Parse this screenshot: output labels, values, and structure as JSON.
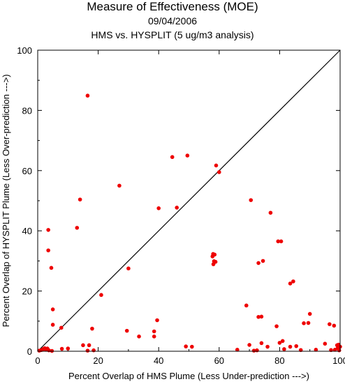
{
  "header": {
    "title": "Measure of Effectiveness (MOE)",
    "date": "09/04/2006",
    "subtitle": "HMS vs. HYSPLIT  (5 ug/m3 analysis)"
  },
  "chart_data": {
    "type": "scatter",
    "xlabel": "Percent Overlap of HMS Plume (Less Under-prediction --->)",
    "ylabel": "Percent Overlap of HYSPLIT Plume (Less Over-prediction --->)",
    "xlim": [
      0,
      100
    ],
    "ylim": [
      0,
      100
    ],
    "xticks": [
      0,
      20,
      40,
      60,
      80,
      100
    ],
    "yticks": [
      0,
      20,
      40,
      60,
      80,
      100
    ],
    "grid": false,
    "reference_line": "y = x",
    "point_color": "#ee0000",
    "line_color": "#000000",
    "points": [
      [
        16.5,
        84.9
      ],
      [
        59,
        61.7
      ],
      [
        60,
        59.5
      ],
      [
        44.5,
        64.5
      ],
      [
        49.5,
        65
      ],
      [
        27,
        55
      ],
      [
        14,
        50.4
      ],
      [
        70.5,
        50.2
      ],
      [
        40,
        47.5
      ],
      [
        46,
        47.7
      ],
      [
        77,
        46
      ],
      [
        13,
        41
      ],
      [
        3.5,
        40.3
      ],
      [
        79.5,
        36.5
      ],
      [
        80.5,
        36.5
      ],
      [
        3.5,
        33.5
      ],
      [
        4.5,
        27.7
      ],
      [
        30,
        27.5
      ],
      [
        58,
        32.3
      ],
      [
        58.5,
        32.1
      ],
      [
        57.8,
        31.5
      ],
      [
        58.3,
        29.9
      ],
      [
        58.8,
        29.7
      ],
      [
        58.1,
        28.9
      ],
      [
        73,
        29.3
      ],
      [
        74.5,
        30
      ],
      [
        84.5,
        23.2
      ],
      [
        83.5,
        22.5
      ],
      [
        21,
        18.7
      ],
      [
        5,
        13.9
      ],
      [
        69,
        15.2
      ],
      [
        90,
        12.4
      ],
      [
        73,
        11.4
      ],
      [
        74,
        11.5
      ],
      [
        39.5,
        10.3
      ],
      [
        88,
        9.3
      ],
      [
        89.5,
        9.4
      ],
      [
        96.5,
        9
      ],
      [
        98,
        8.5
      ],
      [
        5,
        8.8
      ],
      [
        79,
        8.3
      ],
      [
        7.8,
        7.8
      ],
      [
        18,
        7.5
      ],
      [
        29.5,
        6.8
      ],
      [
        38.5,
        6.6
      ],
      [
        33.5,
        4.9
      ],
      [
        38.5,
        4.9
      ],
      [
        81,
        3.4
      ],
      [
        80,
        2.8
      ],
      [
        70,
        2.1
      ],
      [
        74,
        2.7
      ],
      [
        95,
        2.5
      ],
      [
        15,
        2
      ],
      [
        17,
        2
      ],
      [
        49,
        1.6
      ],
      [
        51,
        1.5
      ],
      [
        76,
        1.5
      ],
      [
        83.5,
        1.5
      ],
      [
        85.5,
        1.7
      ],
      [
        99,
        2
      ],
      [
        99.5,
        2.2
      ],
      [
        100,
        1.5
      ],
      [
        0.5,
        0.2
      ],
      [
        1.2,
        0.4
      ],
      [
        1.8,
        0.7
      ],
      [
        2.3,
        1
      ],
      [
        2.8,
        0.5
      ],
      [
        3.2,
        0.9
      ],
      [
        3.7,
        0.3
      ],
      [
        4.7,
        0.1
      ],
      [
        8,
        0.8
      ],
      [
        10,
        0.9
      ],
      [
        16.5,
        0.2
      ],
      [
        18.5,
        0.3
      ],
      [
        66,
        0.5
      ],
      [
        71.5,
        0.2
      ],
      [
        72.5,
        0.3
      ],
      [
        81.5,
        0.7
      ],
      [
        87,
        0.4
      ],
      [
        92,
        0.5
      ],
      [
        97,
        0.4
      ],
      [
        98.3,
        0.5
      ],
      [
        99.2,
        1
      ],
      [
        99.7,
        0.3
      ]
    ]
  }
}
